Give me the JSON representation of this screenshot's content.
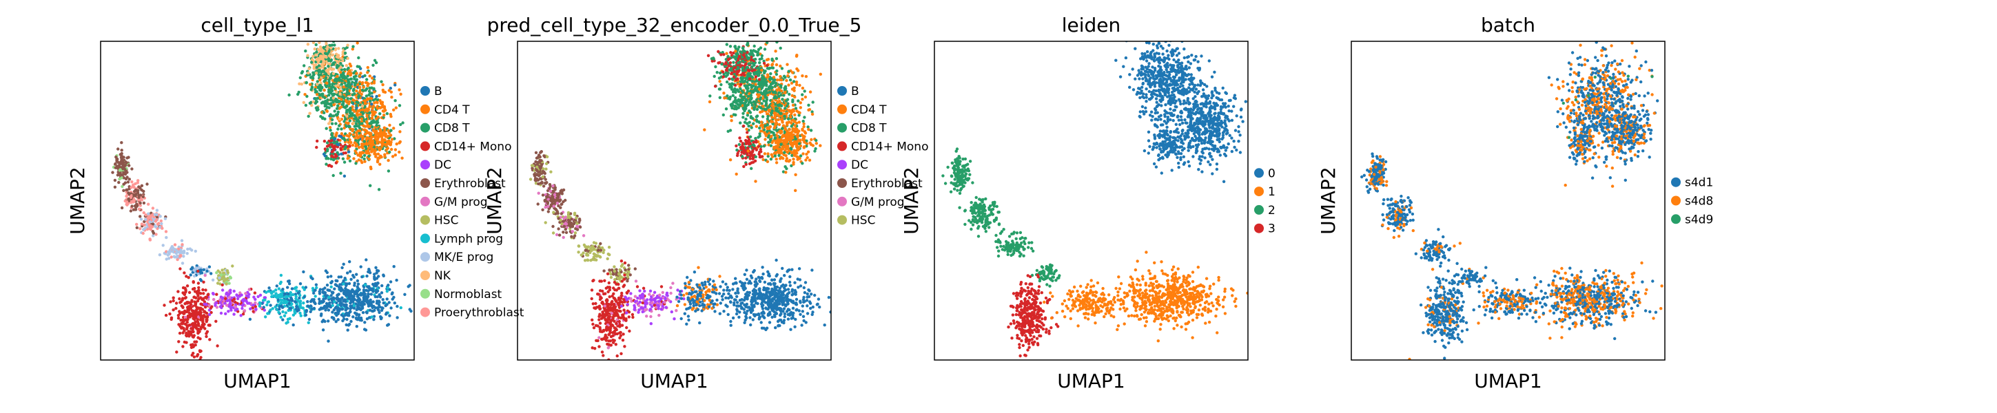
{
  "chart_data": [
    {
      "type": "scatter",
      "title": "cell_type_l1",
      "xlabel": "UMAP1",
      "ylabel": "UMAP2",
      "legend_position": "right",
      "legend": [
        {
          "name": "B",
          "color": "#1f77b4"
        },
        {
          "name": "CD4 T",
          "color": "#ff7f0e"
        },
        {
          "name": "CD8 T",
          "color": "#279e68"
        },
        {
          "name": "CD14+ Mono",
          "color": "#d62728"
        },
        {
          "name": "DC",
          "color": "#aa40fc"
        },
        {
          "name": "Erythroblast",
          "color": "#8c564b"
        },
        {
          "name": "G/M prog",
          "color": "#e377c2"
        },
        {
          "name": "HSC",
          "color": "#b5bd61"
        },
        {
          "name": "Lymph prog",
          "color": "#17becf"
        },
        {
          "name": "MK/E prog",
          "color": "#aec7e8"
        },
        {
          "name": "NK",
          "color": "#ffbb78"
        },
        {
          "name": "Normoblast",
          "color": "#98df8a"
        },
        {
          "name": "Proerythroblast",
          "color": "#ff9896"
        }
      ],
      "clusters": [
        {
          "cx": 0.83,
          "cy": 0.78,
          "sx": 0.045,
          "sy": 0.07,
          "n": 500,
          "mix": {
            "0": 0.05,
            "1": 0.5,
            "2": 0.45
          }
        },
        {
          "cx": 0.74,
          "cy": 0.86,
          "sx": 0.045,
          "sy": 0.06,
          "n": 480,
          "mix": {
            "1": 0.15,
            "2": 0.7,
            "10": 0.15
          }
        },
        {
          "cx": 0.72,
          "cy": 0.95,
          "sx": 0.03,
          "sy": 0.025,
          "n": 180,
          "mix": {
            "10": 0.7,
            "2": 0.3
          }
        },
        {
          "cx": 0.75,
          "cy": 0.66,
          "sx": 0.02,
          "sy": 0.025,
          "n": 110,
          "mix": {
            "3": 0.55,
            "2": 0.3,
            "0": 0.15
          }
        },
        {
          "cx": 0.87,
          "cy": 0.68,
          "sx": 0.035,
          "sy": 0.03,
          "n": 260,
          "mix": {
            "1": 0.85,
            "2": 0.15
          }
        },
        {
          "cx": 0.07,
          "cy": 0.6,
          "sx": 0.012,
          "sy": 0.025,
          "n": 110,
          "mix": {
            "5": 0.85,
            "11": 0.15
          }
        },
        {
          "cx": 0.11,
          "cy": 0.51,
          "sx": 0.018,
          "sy": 0.025,
          "n": 120,
          "mix": {
            "5": 0.6,
            "12": 0.4
          }
        },
        {
          "cx": 0.16,
          "cy": 0.43,
          "sx": 0.02,
          "sy": 0.02,
          "n": 100,
          "mix": {
            "12": 0.55,
            "5": 0.2,
            "9": 0.25
          }
        },
        {
          "cx": 0.24,
          "cy": 0.34,
          "sx": 0.022,
          "sy": 0.014,
          "n": 70,
          "mix": {
            "9": 0.7,
            "12": 0.3
          }
        },
        {
          "cx": 0.31,
          "cy": 0.28,
          "sx": 0.015,
          "sy": 0.012,
          "n": 40,
          "mix": {
            "9": 0.6,
            "0": 0.4
          }
        },
        {
          "cx": 0.39,
          "cy": 0.26,
          "sx": 0.014,
          "sy": 0.014,
          "n": 50,
          "mix": {
            "7": 0.5,
            "11": 0.3,
            "9": 0.2
          }
        },
        {
          "cx": 0.3,
          "cy": 0.14,
          "sx": 0.028,
          "sy": 0.05,
          "n": 320,
          "mix": {
            "3": 0.95,
            "6": 0.05
          }
        },
        {
          "cx": 0.43,
          "cy": 0.18,
          "sx": 0.045,
          "sy": 0.02,
          "n": 150,
          "mix": {
            "4": 0.6,
            "6": 0.2,
            "3": 0.2
          }
        },
        {
          "cx": 0.6,
          "cy": 0.18,
          "sx": 0.045,
          "sy": 0.03,
          "n": 200,
          "mix": {
            "8": 0.7,
            "0": 0.3
          }
        },
        {
          "cx": 0.8,
          "cy": 0.19,
          "sx": 0.07,
          "sy": 0.04,
          "n": 520,
          "mix": {
            "0": 0.93,
            "8": 0.07
          }
        }
      ]
    },
    {
      "type": "scatter",
      "title": "pred_cell_type_32_encoder_0.0_True_5",
      "xlabel": "UMAP1",
      "ylabel": "UMAP2",
      "legend_position": "right",
      "legend": [
        {
          "name": "B",
          "color": "#1f77b4"
        },
        {
          "name": "CD4 T",
          "color": "#ff7f0e"
        },
        {
          "name": "CD8 T",
          "color": "#279e68"
        },
        {
          "name": "CD14+ Mono",
          "color": "#d62728"
        },
        {
          "name": "DC",
          "color": "#aa40fc"
        },
        {
          "name": "Erythroblast",
          "color": "#8c564b"
        },
        {
          "name": "G/M prog",
          "color": "#e377c2"
        },
        {
          "name": "HSC",
          "color": "#b5bd61"
        }
      ],
      "clusters": [
        {
          "cx": 0.83,
          "cy": 0.78,
          "sx": 0.045,
          "sy": 0.07,
          "n": 500,
          "mix": {
            "1": 0.55,
            "2": 0.45
          }
        },
        {
          "cx": 0.74,
          "cy": 0.86,
          "sx": 0.045,
          "sy": 0.06,
          "n": 480,
          "mix": {
            "2": 0.85,
            "1": 0.15
          }
        },
        {
          "cx": 0.7,
          "cy": 0.93,
          "sx": 0.035,
          "sy": 0.03,
          "n": 200,
          "mix": {
            "2": 0.5,
            "3": 0.5
          }
        },
        {
          "cx": 0.74,
          "cy": 0.66,
          "sx": 0.02,
          "sy": 0.025,
          "n": 110,
          "mix": {
            "3": 0.8,
            "2": 0.2
          }
        },
        {
          "cx": 0.87,
          "cy": 0.68,
          "sx": 0.035,
          "sy": 0.03,
          "n": 260,
          "mix": {
            "1": 0.85,
            "2": 0.15
          }
        },
        {
          "cx": 0.07,
          "cy": 0.6,
          "sx": 0.012,
          "sy": 0.025,
          "n": 110,
          "mix": {
            "5": 0.8,
            "7": 0.2
          }
        },
        {
          "cx": 0.11,
          "cy": 0.51,
          "sx": 0.018,
          "sy": 0.025,
          "n": 120,
          "mix": {
            "5": 0.85,
            "6": 0.15
          }
        },
        {
          "cx": 0.16,
          "cy": 0.43,
          "sx": 0.02,
          "sy": 0.02,
          "n": 100,
          "mix": {
            "5": 0.6,
            "6": 0.2,
            "7": 0.2
          }
        },
        {
          "cx": 0.24,
          "cy": 0.34,
          "sx": 0.022,
          "sy": 0.014,
          "n": 70,
          "mix": {
            "7": 0.8,
            "5": 0.2
          }
        },
        {
          "cx": 0.33,
          "cy": 0.27,
          "sx": 0.02,
          "sy": 0.014,
          "n": 60,
          "mix": {
            "7": 0.7,
            "5": 0.3
          }
        },
        {
          "cx": 0.3,
          "cy": 0.14,
          "sx": 0.028,
          "sy": 0.05,
          "n": 320,
          "mix": {
            "3": 0.95,
            "6": 0.05
          }
        },
        {
          "cx": 0.43,
          "cy": 0.18,
          "sx": 0.045,
          "sy": 0.02,
          "n": 150,
          "mix": {
            "4": 0.55,
            "6": 0.35,
            "3": 0.1
          }
        },
        {
          "cx": 0.58,
          "cy": 0.2,
          "sx": 0.035,
          "sy": 0.03,
          "n": 170,
          "mix": {
            "1": 0.45,
            "0": 0.55
          }
        },
        {
          "cx": 0.8,
          "cy": 0.19,
          "sx": 0.07,
          "sy": 0.04,
          "n": 520,
          "mix": {
            "0": 1
          }
        }
      ]
    },
    {
      "type": "scatter",
      "title": "leiden",
      "xlabel": "UMAP1",
      "ylabel": "UMAP2",
      "legend_position": "right",
      "legend": [
        {
          "name": "0",
          "color": "#1f77b4"
        },
        {
          "name": "1",
          "color": "#ff7f0e"
        },
        {
          "name": "2",
          "color": "#279e68"
        },
        {
          "name": "3",
          "color": "#d62728"
        }
      ],
      "clusters": [
        {
          "cx": 0.74,
          "cy": 0.88,
          "sx": 0.05,
          "sy": 0.06,
          "n": 520,
          "mix": {
            "0": 1
          }
        },
        {
          "cx": 0.86,
          "cy": 0.74,
          "sx": 0.05,
          "sy": 0.06,
          "n": 520,
          "mix": {
            "0": 1
          }
        },
        {
          "cx": 0.74,
          "cy": 0.68,
          "sx": 0.03,
          "sy": 0.03,
          "n": 150,
          "mix": {
            "0": 1
          }
        },
        {
          "cx": 0.08,
          "cy": 0.58,
          "sx": 0.015,
          "sy": 0.03,
          "n": 140,
          "mix": {
            "2": 1
          }
        },
        {
          "cx": 0.15,
          "cy": 0.46,
          "sx": 0.025,
          "sy": 0.025,
          "n": 140,
          "mix": {
            "2": 1
          }
        },
        {
          "cx": 0.25,
          "cy": 0.36,
          "sx": 0.025,
          "sy": 0.018,
          "n": 90,
          "mix": {
            "2": 1
          }
        },
        {
          "cx": 0.36,
          "cy": 0.27,
          "sx": 0.02,
          "sy": 0.014,
          "n": 60,
          "mix": {
            "2": 1
          }
        },
        {
          "cx": 0.3,
          "cy": 0.14,
          "sx": 0.028,
          "sy": 0.05,
          "n": 320,
          "mix": {
            "3": 1
          }
        },
        {
          "cx": 0.5,
          "cy": 0.18,
          "sx": 0.05,
          "sy": 0.025,
          "n": 180,
          "mix": {
            "1": 1
          }
        },
        {
          "cx": 0.75,
          "cy": 0.19,
          "sx": 0.08,
          "sy": 0.04,
          "n": 600,
          "mix": {
            "1": 1
          }
        }
      ]
    },
    {
      "type": "scatter",
      "title": "batch",
      "xlabel": "UMAP1",
      "ylabel": "UMAP2",
      "legend_position": "right",
      "legend": [
        {
          "name": "s4d1",
          "color": "#1f77b4"
        },
        {
          "name": "s4d8",
          "color": "#ff7f0e"
        },
        {
          "name": "s4d9",
          "color": "#279e68"
        }
      ],
      "clusters": [
        {
          "cx": 0.8,
          "cy": 0.8,
          "sx": 0.06,
          "sy": 0.08,
          "n": 650,
          "mix": {
            "0": 0.6,
            "1": 0.38,
            "2": 0.02
          }
        },
        {
          "cx": 0.88,
          "cy": 0.72,
          "sx": 0.035,
          "sy": 0.04,
          "n": 250,
          "mix": {
            "0": 0.65,
            "1": 0.35
          }
        },
        {
          "cx": 0.74,
          "cy": 0.68,
          "sx": 0.025,
          "sy": 0.03,
          "n": 120,
          "mix": {
            "0": 0.7,
            "1": 0.3
          }
        },
        {
          "cx": 0.08,
          "cy": 0.58,
          "sx": 0.015,
          "sy": 0.03,
          "n": 140,
          "mix": {
            "0": 0.7,
            "1": 0.3
          }
        },
        {
          "cx": 0.15,
          "cy": 0.46,
          "sx": 0.025,
          "sy": 0.025,
          "n": 140,
          "mix": {
            "0": 0.75,
            "1": 0.25
          }
        },
        {
          "cx": 0.27,
          "cy": 0.34,
          "sx": 0.025,
          "sy": 0.018,
          "n": 90,
          "mix": {
            "0": 0.85,
            "1": 0.15
          }
        },
        {
          "cx": 0.38,
          "cy": 0.26,
          "sx": 0.02,
          "sy": 0.014,
          "n": 60,
          "mix": {
            "0": 0.8,
            "1": 0.2
          }
        },
        {
          "cx": 0.3,
          "cy": 0.15,
          "sx": 0.03,
          "sy": 0.05,
          "n": 320,
          "mix": {
            "0": 0.85,
            "1": 0.15
          }
        },
        {
          "cx": 0.5,
          "cy": 0.18,
          "sx": 0.05,
          "sy": 0.025,
          "n": 180,
          "mix": {
            "0": 0.65,
            "1": 0.35
          }
        },
        {
          "cx": 0.76,
          "cy": 0.19,
          "sx": 0.08,
          "sy": 0.04,
          "n": 600,
          "mix": {
            "0": 0.55,
            "1": 0.45
          }
        }
      ]
    }
  ]
}
